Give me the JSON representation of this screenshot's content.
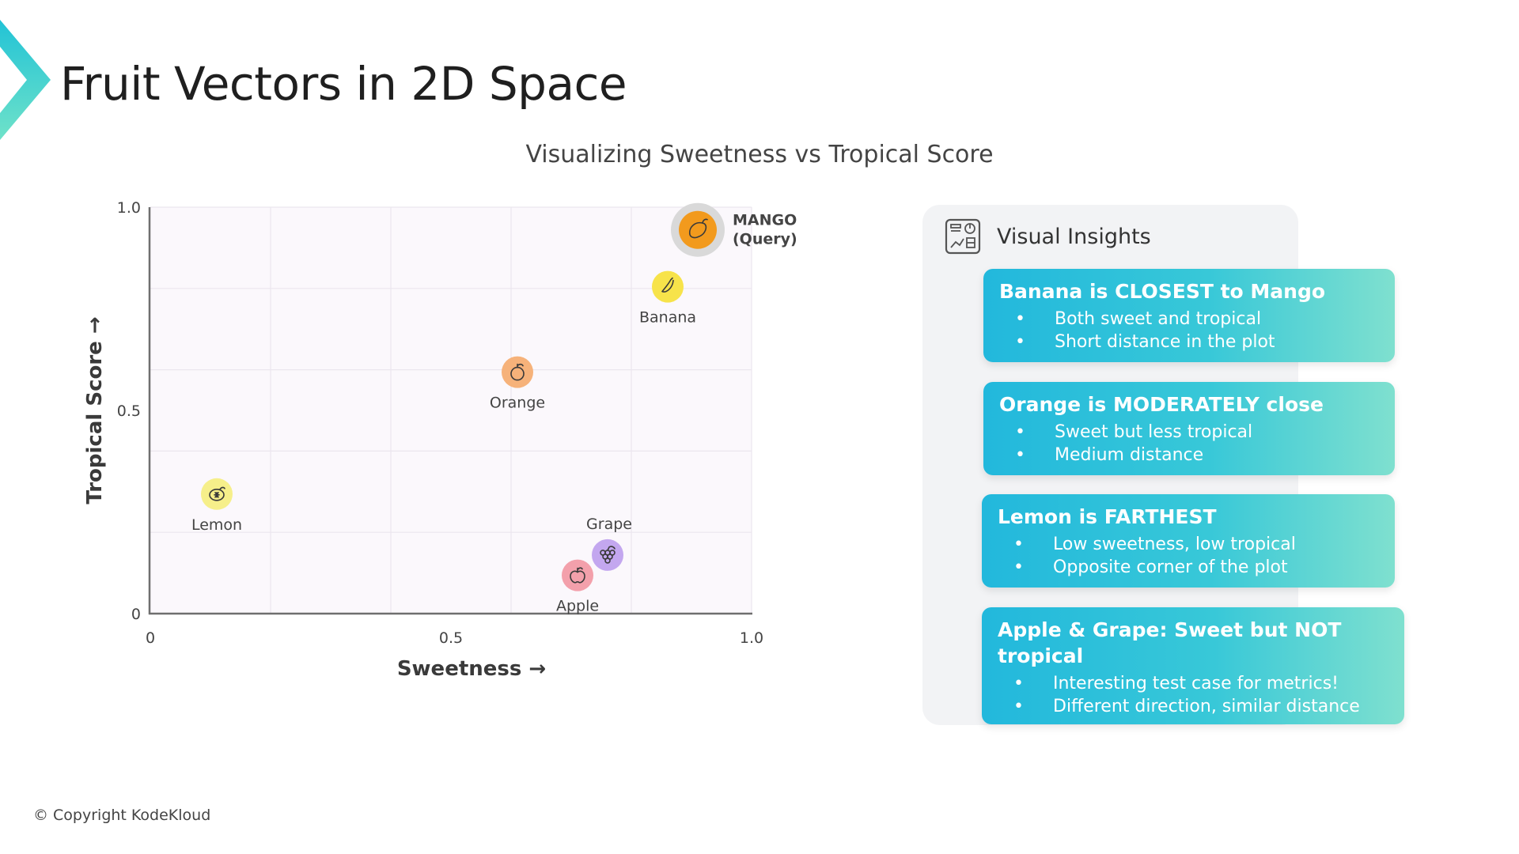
{
  "page": {
    "title": "Fruit Vectors in 2D Space",
    "copyright": "© Copyright KodeKloud"
  },
  "colors": {
    "accent_teal": "#22b8dc",
    "accent_mint": "#7fe0cf"
  },
  "chart_data": {
    "type": "scatter",
    "title": "Visualizing Sweetness vs Tropical Score",
    "xlabel": "Sweetness →",
    "ylabel": "Tropical Score →",
    "xlim": [
      0,
      1.0
    ],
    "ylim": [
      0,
      1.0
    ],
    "x_ticks": [
      "0",
      "0.5",
      "1.0"
    ],
    "y_ticks": [
      "0",
      "0.5",
      "1.0"
    ],
    "grid": true,
    "points": [
      {
        "label": "Banana",
        "x": 0.85,
        "y": 0.81,
        "color": "#f7e34a",
        "icon": "banana-icon"
      },
      {
        "label": "Orange",
        "x": 0.6,
        "y": 0.6,
        "color": "#f6b27a",
        "icon": "orange-icon"
      },
      {
        "label": "Lemon",
        "x": 0.1,
        "y": 0.3,
        "color": "#f6ef8a",
        "icon": "lemon-icon"
      },
      {
        "label": "Grape",
        "x": 0.75,
        "y": 0.15,
        "color": "#c3a7ef",
        "icon": "grape-icon"
      },
      {
        "label": "Apple",
        "x": 0.7,
        "y": 0.1,
        "color": "#f3a0ab",
        "icon": "apple-icon"
      }
    ],
    "query": {
      "label_line1": "MANGO",
      "label_line2": "(Query)",
      "x": 0.9,
      "y": 0.95,
      "color": "#f29a1d",
      "icon": "mango-icon"
    }
  },
  "insights": {
    "title": "Visual Insights",
    "icon": "dashboard-icon",
    "cards": [
      {
        "heading": "Banana is CLOSEST to Mango",
        "bullets": [
          "Both sweet and tropical",
          "Short distance in the plot"
        ]
      },
      {
        "heading": "Orange is MODERATELY close",
        "bullets": [
          "Sweet but less tropical",
          "Medium distance"
        ]
      },
      {
        "heading": "Lemon is FARTHEST",
        "bullets": [
          "Low sweetness, low tropical",
          "Opposite corner of the plot"
        ]
      },
      {
        "heading": "Apple & Grape: Sweet but NOT tropical",
        "bullets": [
          "Interesting test case for metrics!",
          "Different direction, similar distance"
        ]
      }
    ]
  }
}
